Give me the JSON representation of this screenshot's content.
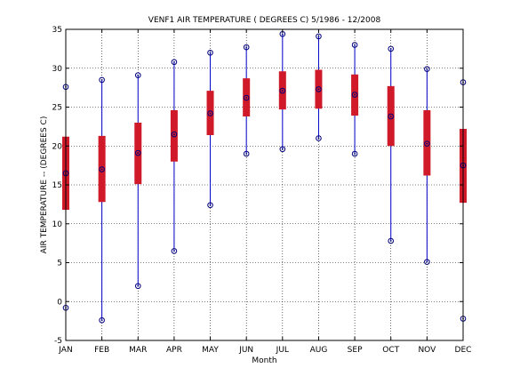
{
  "chart_data": {
    "type": "box",
    "title": "VENF1  AIR TEMPERATURE ( DEGREES C) 5/1986 - 12/2008",
    "xlabel": "Month",
    "ylabel": "AIR TEMPERATURE -- (DEGREES C)",
    "ylim": [
      -5,
      35
    ],
    "yticks": [
      -5,
      0,
      5,
      10,
      15,
      20,
      25,
      30,
      35
    ],
    "grid": true,
    "colors": {
      "whisker": "#0000c8",
      "box": "#d01a2a",
      "marker": "#00007a",
      "grid": "#000000"
    },
    "categories": [
      "JAN",
      "FEB",
      "MAR",
      "APR",
      "MAY",
      "JUN",
      "JUL",
      "AUG",
      "SEP",
      "OCT",
      "NOV",
      "DEC"
    ],
    "min": [
      -0.8,
      -2.4,
      2.0,
      6.5,
      12.4,
      19.0,
      19.6,
      21.0,
      19.0,
      7.8,
      5.1,
      -2.2
    ],
    "q1": [
      11.8,
      12.8,
      15.1,
      18.0,
      21.4,
      23.8,
      24.7,
      24.8,
      23.9,
      20.0,
      16.2,
      12.7
    ],
    "median": [
      16.5,
      17.0,
      19.1,
      21.5,
      24.2,
      26.2,
      27.1,
      27.3,
      26.6,
      23.8,
      20.3,
      17.5
    ],
    "q3": [
      21.2,
      21.3,
      23.0,
      24.6,
      27.1,
      28.7,
      29.6,
      29.8,
      29.2,
      27.7,
      24.6,
      22.2
    ],
    "max": [
      27.6,
      28.5,
      29.1,
      30.8,
      32.0,
      32.7,
      34.4,
      34.1,
      33.0,
      32.5,
      29.9,
      28.2
    ]
  }
}
